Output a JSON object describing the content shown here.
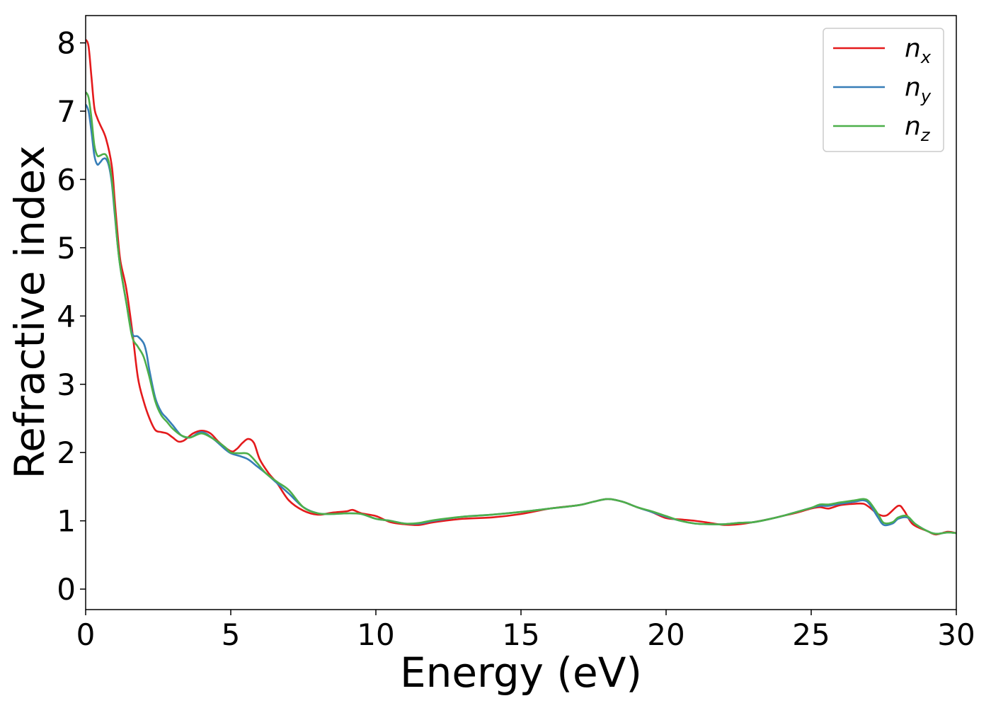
{
  "chart_data": {
    "type": "line",
    "title": "",
    "xlabel": "Energy (eV)",
    "ylabel": "Refractive index",
    "xlim": [
      0,
      30
    ],
    "ylim": [
      -0.3,
      8.4
    ],
    "xticks": [
      0,
      5,
      10,
      15,
      20,
      25,
      30
    ],
    "yticks": [
      0,
      1,
      2,
      3,
      4,
      5,
      6,
      7,
      8
    ],
    "grid": false,
    "legend_position": "top-right",
    "series": [
      {
        "name": "n",
        "subscript": "x",
        "color": "#e41a1c",
        "x": [
          0,
          0.1,
          0.2,
          0.3,
          0.4,
          0.5,
          0.7,
          0.9,
          1.0,
          1.1,
          1.2,
          1.4,
          1.6,
          1.8,
          2.0,
          2.2,
          2.4,
          2.6,
          2.8,
          3.0,
          3.2,
          3.4,
          3.7,
          4.0,
          4.3,
          4.6,
          5.0,
          5.2,
          5.4,
          5.6,
          5.8,
          6.0,
          6.3,
          6.6,
          7.0,
          7.5,
          8.0,
          8.5,
          9.0,
          9.2,
          9.5,
          10.0,
          10.5,
          11.0,
          11.5,
          12.0,
          13.0,
          14.0,
          15.0,
          16.0,
          17.0,
          17.5,
          18.0,
          18.5,
          19.0,
          19.5,
          20.0,
          20.5,
          21.0,
          21.5,
          22.0,
          22.5,
          23.0,
          23.5,
          24.0,
          24.5,
          25.0,
          25.3,
          25.6,
          26.0,
          26.5,
          26.8,
          27.0,
          27.3,
          27.6,
          28.0,
          28.2,
          28.5,
          29.0,
          29.3,
          29.7,
          30.0
        ],
        "y": [
          8.05,
          7.95,
          7.5,
          7.05,
          6.9,
          6.8,
          6.6,
          6.2,
          5.7,
          5.2,
          4.8,
          4.4,
          3.8,
          3.1,
          2.75,
          2.5,
          2.33,
          2.3,
          2.28,
          2.22,
          2.16,
          2.18,
          2.28,
          2.32,
          2.28,
          2.15,
          2.02,
          2.05,
          2.14,
          2.2,
          2.14,
          1.9,
          1.7,
          1.55,
          1.3,
          1.15,
          1.09,
          1.12,
          1.14,
          1.16,
          1.11,
          1.07,
          0.98,
          0.95,
          0.94,
          0.98,
          1.03,
          1.05,
          1.1,
          1.18,
          1.23,
          1.28,
          1.32,
          1.28,
          1.2,
          1.13,
          1.04,
          1.02,
          1.0,
          0.97,
          0.94,
          0.95,
          0.98,
          1.02,
          1.07,
          1.12,
          1.18,
          1.2,
          1.18,
          1.23,
          1.25,
          1.25,
          1.2,
          1.1,
          1.08,
          1.22,
          1.15,
          0.95,
          0.85,
          0.8,
          0.84,
          0.82
        ]
      },
      {
        "name": "n",
        "subscript": "y",
        "color": "#377eb8",
        "x": [
          0,
          0.1,
          0.2,
          0.3,
          0.4,
          0.5,
          0.6,
          0.7,
          0.8,
          0.9,
          1.0,
          1.1,
          1.2,
          1.4,
          1.6,
          1.8,
          2.0,
          2.1,
          2.2,
          2.4,
          2.6,
          2.8,
          3.0,
          3.3,
          3.6,
          4.0,
          4.4,
          4.8,
          5.0,
          5.3,
          5.6,
          5.9,
          6.2,
          6.6,
          7.0,
          7.5,
          8.0,
          8.5,
          9.0,
          9.5,
          10.0,
          10.5,
          11.0,
          11.5,
          12.0,
          13.0,
          14.0,
          15.0,
          16.0,
          17.0,
          17.5,
          18.0,
          18.5,
          19.0,
          19.5,
          20.0,
          20.5,
          21.0,
          21.5,
          22.0,
          22.5,
          23.0,
          23.5,
          24.0,
          24.5,
          25.0,
          25.3,
          25.6,
          26.0,
          26.5,
          26.8,
          27.0,
          27.3,
          27.5,
          27.8,
          28.0,
          28.3,
          28.6,
          29.0,
          29.3,
          29.7,
          30.0
        ],
        "y": [
          7.1,
          7.0,
          6.7,
          6.35,
          6.22,
          6.25,
          6.3,
          6.3,
          6.2,
          5.95,
          5.5,
          5.05,
          4.7,
          4.2,
          3.75,
          3.7,
          3.6,
          3.45,
          3.2,
          2.8,
          2.6,
          2.5,
          2.4,
          2.25,
          2.22,
          2.3,
          2.2,
          2.05,
          1.99,
          1.95,
          1.9,
          1.8,
          1.7,
          1.55,
          1.4,
          1.2,
          1.11,
          1.1,
          1.11,
          1.1,
          1.03,
          1.0,
          0.96,
          0.96,
          1.0,
          1.06,
          1.09,
          1.13,
          1.18,
          1.23,
          1.28,
          1.32,
          1.28,
          1.2,
          1.13,
          1.06,
          1.0,
          0.96,
          0.95,
          0.95,
          0.97,
          0.98,
          1.02,
          1.07,
          1.13,
          1.19,
          1.22,
          1.22,
          1.25,
          1.28,
          1.3,
          1.25,
          1.05,
          0.94,
          0.96,
          1.03,
          1.05,
          0.95,
          0.85,
          0.81,
          0.83,
          0.82
        ]
      },
      {
        "name": "n",
        "subscript": "z",
        "color": "#4daf4a",
        "x": [
          0,
          0.1,
          0.2,
          0.3,
          0.4,
          0.5,
          0.6,
          0.7,
          0.8,
          0.9,
          1.0,
          1.1,
          1.2,
          1.4,
          1.6,
          1.8,
          2.0,
          2.2,
          2.4,
          2.6,
          2.8,
          3.0,
          3.3,
          3.6,
          4.0,
          4.4,
          4.8,
          5.0,
          5.3,
          5.6,
          5.9,
          6.2,
          6.6,
          7.0,
          7.5,
          8.0,
          8.5,
          9.0,
          9.5,
          10.0,
          10.5,
          11.0,
          11.5,
          12.0,
          13.0,
          14.0,
          15.0,
          16.0,
          17.0,
          17.5,
          18.0,
          18.5,
          19.0,
          19.5,
          20.0,
          20.5,
          21.0,
          21.5,
          22.0,
          22.5,
          23.0,
          23.5,
          24.0,
          24.5,
          25.0,
          25.3,
          25.6,
          26.0,
          26.5,
          26.8,
          27.0,
          27.3,
          27.5,
          27.8,
          28.0,
          28.3,
          28.6,
          29.0,
          29.3,
          29.7,
          30.0
        ],
        "y": [
          7.28,
          7.2,
          6.9,
          6.5,
          6.35,
          6.35,
          6.37,
          6.36,
          6.25,
          6.0,
          5.55,
          5.05,
          4.7,
          4.2,
          3.7,
          3.55,
          3.4,
          3.1,
          2.75,
          2.55,
          2.45,
          2.35,
          2.25,
          2.22,
          2.28,
          2.2,
          2.08,
          2.0,
          1.99,
          1.98,
          1.85,
          1.7,
          1.57,
          1.45,
          1.2,
          1.11,
          1.1,
          1.11,
          1.1,
          1.03,
          1.0,
          0.96,
          0.97,
          1.01,
          1.06,
          1.09,
          1.13,
          1.18,
          1.23,
          1.28,
          1.32,
          1.28,
          1.2,
          1.14,
          1.07,
          1.0,
          0.96,
          0.95,
          0.95,
          0.97,
          0.98,
          1.02,
          1.07,
          1.13,
          1.19,
          1.24,
          1.24,
          1.27,
          1.3,
          1.32,
          1.28,
          1.1,
          0.97,
          0.98,
          1.05,
          1.07,
          0.95,
          0.85,
          0.81,
          0.83,
          0.82
        ]
      }
    ]
  }
}
